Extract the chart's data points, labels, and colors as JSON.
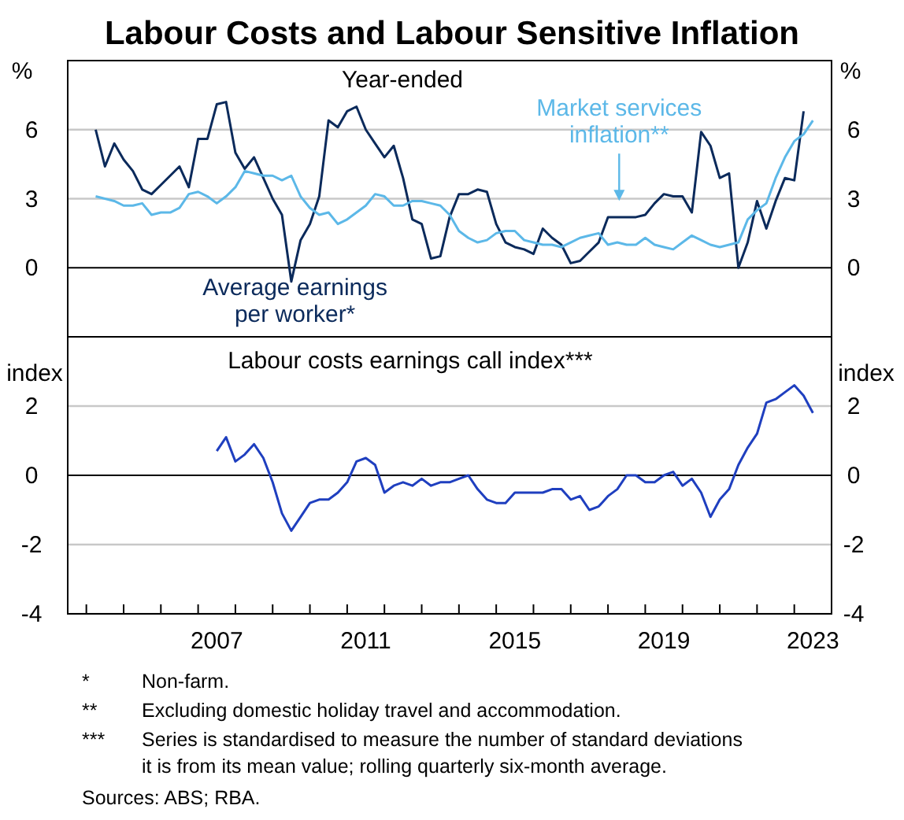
{
  "chart_data": [
    {
      "type": "line",
      "title": "Labour Costs and Labour Sensitive Inflation",
      "subtitle": "Year-ended",
      "ylabel": "%",
      "y2label": "%",
      "xlim": [
        2003.5,
        2024
      ],
      "ylim": [
        -3,
        9
      ],
      "yticks": [
        0,
        3,
        6
      ],
      "y2lim": [
        -3,
        9
      ],
      "y2ticks": [
        0,
        3,
        6
      ],
      "grid": "y",
      "tick_labels": "y",
      "series": [
        {
          "name": "Average earnings per worker*",
          "color": "#0b2a5b",
          "x": [
            2004.25,
            2004.5,
            2004.75,
            2005,
            2005.25,
            2005.5,
            2005.75,
            2006,
            2006.25,
            2006.5,
            2006.75,
            2007,
            2007.25,
            2007.5,
            2007.75,
            2008,
            2008.25,
            2008.5,
            2008.75,
            2009,
            2009.25,
            2009.5,
            2009.75,
            2010,
            2010.25,
            2010.5,
            2010.75,
            2011,
            2011.25,
            2011.5,
            2011.75,
            2012,
            2012.25,
            2012.5,
            2012.75,
            2013,
            2013.25,
            2013.5,
            2013.75,
            2014,
            2014.25,
            2014.5,
            2014.75,
            2015,
            2015.25,
            2015.5,
            2015.75,
            2016,
            2016.25,
            2016.5,
            2016.75,
            2017,
            2017.25,
            2017.5,
            2017.75,
            2018,
            2018.25,
            2018.5,
            2018.75,
            2019,
            2019.25,
            2019.5,
            2019.75,
            2020,
            2020.25,
            2020.5,
            2020.75,
            2021,
            2021.25,
            2021.5,
            2021.75,
            2022,
            2022.25,
            2022.5,
            2022.75,
            2023,
            2023.25
          ],
          "values": [
            6.0,
            4.4,
            5.4,
            4.7,
            4.2,
            3.4,
            3.2,
            3.6,
            4.0,
            4.4,
            3.5,
            5.6,
            5.6,
            7.1,
            7.2,
            5.0,
            4.3,
            4.8,
            3.9,
            3.0,
            2.3,
            -0.6,
            1.2,
            1.9,
            3.1,
            6.4,
            6.1,
            6.8,
            7.0,
            6.0,
            5.4,
            4.8,
            5.3,
            3.9,
            2.1,
            1.9,
            0.4,
            0.5,
            2.2,
            3.2,
            3.2,
            3.4,
            3.3,
            1.9,
            1.1,
            0.9,
            0.8,
            0.6,
            1.7,
            1.3,
            1.0,
            0.2,
            0.3,
            0.7,
            1.1,
            2.2,
            2.2,
            2.2,
            2.2,
            2.3,
            2.8,
            3.2,
            3.1,
            3.1,
            2.4,
            5.9,
            5.3,
            3.9,
            4.1,
            0.0,
            1.1,
            2.9,
            1.7,
            2.9,
            3.9,
            3.8,
            6.8
          ]
        },
        {
          "name": "Market services inflation**",
          "color": "#5cb8e8",
          "x": [
            2004.25,
            2004.5,
            2004.75,
            2005,
            2005.25,
            2005.5,
            2005.75,
            2006,
            2006.25,
            2006.5,
            2006.75,
            2007,
            2007.25,
            2007.5,
            2007.75,
            2008,
            2008.25,
            2008.5,
            2008.75,
            2009,
            2009.25,
            2009.5,
            2009.75,
            2010,
            2010.25,
            2010.5,
            2010.75,
            2011,
            2011.25,
            2011.5,
            2011.75,
            2012,
            2012.25,
            2012.5,
            2012.75,
            2013,
            2013.25,
            2013.5,
            2013.75,
            2014,
            2014.25,
            2014.5,
            2014.75,
            2015,
            2015.25,
            2015.5,
            2015.75,
            2016,
            2016.25,
            2016.5,
            2016.75,
            2017,
            2017.25,
            2017.5,
            2017.75,
            2018,
            2018.25,
            2018.5,
            2018.75,
            2019,
            2019.25,
            2019.5,
            2019.75,
            2020,
            2020.25,
            2020.5,
            2020.75,
            2021,
            2021.25,
            2021.5,
            2021.75,
            2022,
            2022.25,
            2022.5,
            2022.75,
            2023,
            2023.25,
            2023.5
          ],
          "values": [
            3.1,
            3.0,
            2.9,
            2.7,
            2.7,
            2.8,
            2.3,
            2.4,
            2.4,
            2.6,
            3.2,
            3.3,
            3.1,
            2.8,
            3.1,
            3.5,
            4.2,
            4.1,
            4.0,
            4.0,
            3.8,
            4.0,
            3.1,
            2.6,
            2.3,
            2.4,
            1.9,
            2.1,
            2.4,
            2.7,
            3.2,
            3.1,
            2.7,
            2.7,
            2.9,
            2.9,
            2.8,
            2.7,
            2.3,
            1.6,
            1.3,
            1.1,
            1.2,
            1.5,
            1.6,
            1.6,
            1.2,
            1.1,
            1.0,
            1.0,
            0.9,
            1.1,
            1.3,
            1.4,
            1.5,
            1.0,
            1.1,
            1.0,
            1.0,
            1.3,
            1.0,
            0.9,
            0.8,
            1.1,
            1.4,
            1.2,
            1.0,
            0.9,
            1.0,
            1.1,
            2.1,
            2.5,
            2.8,
            3.9,
            4.8,
            5.5,
            5.8,
            6.4
          ]
        }
      ]
    },
    {
      "type": "line",
      "title": "Labour costs earnings call index***",
      "ylabel": "index",
      "y2label": "index",
      "xlim": [
        2003.5,
        2024
      ],
      "ylim": [
        -4,
        4
      ],
      "yticks": [
        -4,
        -2,
        0,
        2
      ],
      "y2lim": [
        -4,
        4
      ],
      "y2ticks": [
        -4,
        -2,
        0,
        2
      ],
      "grid": "y",
      "xticks": [
        {
          "value": 2004,
          "label": null
        },
        {
          "value": 2005,
          "label": null
        },
        {
          "value": 2006,
          "label": null
        },
        {
          "value": 2007,
          "label": null
        },
        {
          "value": 2008,
          "label": null
        },
        {
          "value": 2009,
          "label": null
        },
        {
          "value": 2010,
          "label": null
        },
        {
          "value": 2011,
          "label": null
        },
        {
          "value": 2012,
          "label": null
        },
        {
          "value": 2013,
          "label": null
        },
        {
          "value": 2014,
          "label": null
        },
        {
          "value": 2015,
          "label": null
        },
        {
          "value": 2016,
          "label": null
        },
        {
          "value": 2017,
          "label": null
        },
        {
          "value": 2018,
          "label": null
        },
        {
          "value": 2019,
          "label": null
        },
        {
          "value": 2020,
          "label": null
        },
        {
          "value": 2021,
          "label": null
        },
        {
          "value": 2022,
          "label": null
        },
        {
          "value": 2023,
          "label": null
        },
        {
          "value": 2007.5,
          "label": "2007"
        },
        {
          "value": 2011.5,
          "label": "2011"
        },
        {
          "value": 2015.5,
          "label": "2015"
        },
        {
          "value": 2019.5,
          "label": "2019"
        },
        {
          "value": 2023.5,
          "label": "2023"
        }
      ],
      "series": [
        {
          "color": "#1f3fbf",
          "x": [
            2007.5,
            2007.75,
            2008,
            2008.25,
            2008.5,
            2008.75,
            2009,
            2009.25,
            2009.5,
            2009.75,
            2010,
            2010.25,
            2010.5,
            2010.75,
            2011,
            2011.25,
            2011.5,
            2011.75,
            2012,
            2012.25,
            2012.5,
            2012.75,
            2013,
            2013.25,
            2013.5,
            2013.75,
            2014,
            2014.25,
            2014.5,
            2014.75,
            2015,
            2015.25,
            2015.5,
            2015.75,
            2016,
            2016.25,
            2016.5,
            2016.75,
            2017,
            2017.25,
            2017.5,
            2017.75,
            2018,
            2018.25,
            2018.5,
            2018.75,
            2019,
            2019.25,
            2019.5,
            2019.75,
            2020,
            2020.25,
            2020.5,
            2020.75,
            2021,
            2021.25,
            2021.5,
            2021.75,
            2022,
            2022.25,
            2022.5,
            2022.75,
            2023,
            2023.25,
            2023.5
          ],
          "values": [
            0.7,
            1.1,
            0.4,
            0.6,
            0.9,
            0.5,
            -0.2,
            -1.1,
            -1.6,
            -1.2,
            -0.8,
            -0.7,
            -0.7,
            -0.5,
            -0.2,
            0.4,
            0.5,
            0.3,
            -0.5,
            -0.3,
            -0.2,
            -0.3,
            -0.1,
            -0.3,
            -0.2,
            -0.2,
            -0.1,
            0.0,
            -0.4,
            -0.7,
            -0.8,
            -0.8,
            -0.5,
            -0.5,
            -0.5,
            -0.5,
            -0.4,
            -0.4,
            -0.7,
            -0.6,
            -1.0,
            -0.9,
            -0.6,
            -0.4,
            0.0,
            0.0,
            -0.2,
            -0.2,
            0.0,
            0.1,
            -0.3,
            -0.1,
            -0.5,
            -1.2,
            -0.7,
            -0.4,
            0.3,
            0.8,
            1.2,
            2.1,
            2.2,
            2.4,
            2.6,
            2.3,
            1.8
          ]
        }
      ],
      "annotations": [
        "*\tNon-farm.",
        "**\tExcluding domestic holiday travel and accommodation.",
        "***\tSeries is standardised to measure the number of standard deviations\nit is from its mean value; rolling quarterly six-month average.",
        "Sources: ABS; RBA."
      ]
    }
  ]
}
